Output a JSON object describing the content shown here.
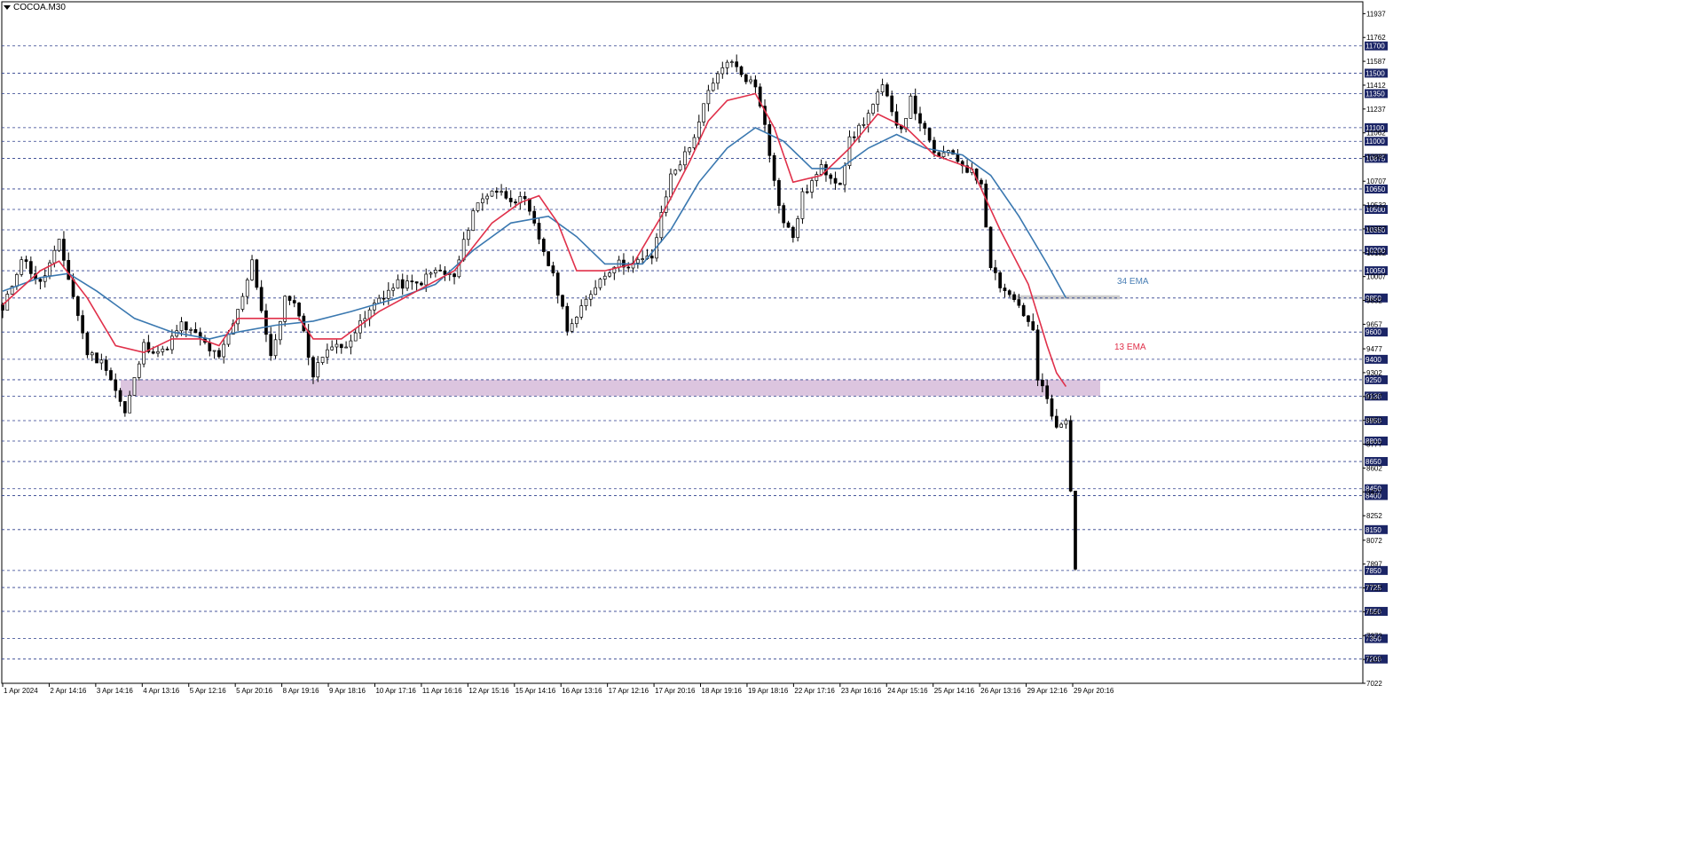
{
  "symbol": "COCOA.M30",
  "chart_data": {
    "type": "candlestick",
    "ylim": [
      7022,
      12024
    ],
    "price_scale_ticks": [
      "11937",
      "11762",
      "11587",
      "11412",
      "11237",
      "11062",
      "10887",
      "10707",
      "10532",
      "10357",
      "10182",
      "10007",
      "9832",
      "9657",
      "9477",
      "9302",
      "9127",
      "8952",
      "8777",
      "8602",
      "8427",
      "8252",
      "8072",
      "7897",
      "7722",
      "7547",
      "7372",
      "7197",
      "7022"
    ],
    "levels": [
      "11700",
      "11500",
      "11350",
      "11100",
      "11000",
      "10875",
      "10650",
      "10500",
      "10350",
      "10200",
      "10050",
      "9850",
      "9600",
      "9400",
      "9250",
      "9130",
      "8950",
      "8800",
      "8650",
      "8450",
      "8400",
      "8150",
      "7850",
      "7725",
      "7550",
      "7350",
      "7200"
    ],
    "x_tick_labels": [
      "1 Apr 2024",
      "2 Apr 14:16",
      "3 Apr 14:16",
      "4 Apr 13:16",
      "5 Apr 12:16",
      "5 Apr 20:16",
      "8 Apr 19:16",
      "9 Apr 18:16",
      "10 Apr 17:16",
      "11 Apr 16:16",
      "12 Apr 15:16",
      "15 Apr 14:16",
      "16 Apr 13:16",
      "17 Apr 12:16",
      "17 Apr 20:16",
      "18 Apr 19:16",
      "19 Apr 18:16",
      "22 Apr 17:16",
      "23 Apr 16:16",
      "24 Apr 15:16",
      "25 Apr 14:16",
      "26 Apr 13:16",
      "29 Apr 12:16",
      "29 Apr 20:16"
    ],
    "annotations": [
      {
        "text": "34 EMA",
        "color": "#4a7fb5"
      },
      {
        "text": "13 EMA",
        "color": "#e0304a"
      }
    ],
    "zones": [
      {
        "from": 9130,
        "to": 9250,
        "color": "#d8bfdc"
      },
      {
        "from": 9840,
        "to": 9870,
        "color": "#c8c8c8"
      }
    ],
    "path": [
      [
        0,
        9750
      ],
      [
        4,
        10150
      ],
      [
        8,
        9950
      ],
      [
        12,
        10250
      ],
      [
        14,
        10000
      ],
      [
        18,
        9450
      ],
      [
        22,
        9350
      ],
      [
        26,
        9000
      ],
      [
        30,
        9500
      ],
      [
        34,
        9450
      ],
      [
        38,
        9650
      ],
      [
        42,
        9550
      ],
      [
        46,
        9400
      ],
      [
        50,
        9750
      ],
      [
        53,
        10130
      ],
      [
        57,
        9400
      ],
      [
        60,
        9850
      ],
      [
        63,
        9750
      ],
      [
        66,
        9280
      ],
      [
        69,
        9500
      ],
      [
        72,
        9480
      ],
      [
        76,
        9650
      ],
      [
        80,
        9850
      ],
      [
        84,
        9950
      ],
      [
        88,
        9950
      ],
      [
        92,
        10050
      ],
      [
        96,
        10000
      ],
      [
        100,
        10500
      ],
      [
        104,
        10650
      ],
      [
        107,
        10600
      ],
      [
        111,
        10550
      ],
      [
        115,
        10200
      ],
      [
        118,
        9900
      ],
      [
        120,
        9640
      ],
      [
        122,
        9700
      ],
      [
        126,
        9950
      ],
      [
        130,
        10100
      ],
      [
        134,
        10100
      ],
      [
        138,
        10150
      ],
      [
        142,
        10750
      ],
      [
        146,
        10950
      ],
      [
        150,
        11350
      ],
      [
        154,
        11600
      ],
      [
        157,
        11500
      ],
      [
        160,
        11400
      ],
      [
        162,
        11150
      ],
      [
        164,
        10700
      ],
      [
        166,
        10400
      ],
      [
        168,
        10300
      ],
      [
        170,
        10600
      ],
      [
        174,
        10800
      ],
      [
        178,
        10700
      ],
      [
        180,
        11000
      ],
      [
        184,
        11200
      ],
      [
        187,
        11400
      ],
      [
        189,
        11200
      ],
      [
        191,
        11100
      ],
      [
        193,
        11300
      ],
      [
        195,
        11150
      ],
      [
        198,
        10900
      ],
      [
        202,
        10900
      ],
      [
        205,
        10800
      ],
      [
        208,
        10700
      ],
      [
        210,
        10100
      ],
      [
        212,
        9950
      ],
      [
        216,
        9800
      ],
      [
        219,
        9600
      ],
      [
        220,
        9250
      ],
      [
        222,
        9100
      ],
      [
        224,
        8880
      ],
      [
        226,
        8950
      ],
      [
        227,
        8420
      ],
      [
        228,
        7860
      ]
    ],
    "ema13": [
      [
        0,
        9800
      ],
      [
        8,
        10050
      ],
      [
        12,
        10120
      ],
      [
        18,
        9850
      ],
      [
        24,
        9500
      ],
      [
        30,
        9450
      ],
      [
        36,
        9550
      ],
      [
        42,
        9550
      ],
      [
        46,
        9500
      ],
      [
        50,
        9700
      ],
      [
        57,
        9700
      ],
      [
        63,
        9700
      ],
      [
        66,
        9550
      ],
      [
        72,
        9550
      ],
      [
        80,
        9750
      ],
      [
        88,
        9900
      ],
      [
        96,
        10050
      ],
      [
        104,
        10400
      ],
      [
        110,
        10550
      ],
      [
        114,
        10600
      ],
      [
        118,
        10400
      ],
      [
        122,
        10050
      ],
      [
        128,
        10050
      ],
      [
        134,
        10100
      ],
      [
        140,
        10450
      ],
      [
        146,
        10850
      ],
      [
        150,
        11150
      ],
      [
        154,
        11300
      ],
      [
        160,
        11350
      ],
      [
        164,
        11100
      ],
      [
        168,
        10700
      ],
      [
        174,
        10750
      ],
      [
        180,
        10950
      ],
      [
        186,
        11200
      ],
      [
        192,
        11100
      ],
      [
        198,
        10900
      ],
      [
        206,
        10800
      ],
      [
        212,
        10350
      ],
      [
        218,
        9950
      ],
      [
        222,
        9500
      ],
      [
        224,
        9300
      ],
      [
        226,
        9200
      ]
    ],
    "ema34": [
      [
        0,
        9900
      ],
      [
        8,
        10000
      ],
      [
        14,
        10030
      ],
      [
        20,
        9900
      ],
      [
        28,
        9700
      ],
      [
        36,
        9600
      ],
      [
        44,
        9550
      ],
      [
        50,
        9600
      ],
      [
        58,
        9650
      ],
      [
        66,
        9680
      ],
      [
        74,
        9750
      ],
      [
        84,
        9850
      ],
      [
        92,
        9950
      ],
      [
        100,
        10200
      ],
      [
        108,
        10400
      ],
      [
        116,
        10450
      ],
      [
        122,
        10300
      ],
      [
        128,
        10100
      ],
      [
        136,
        10100
      ],
      [
        142,
        10350
      ],
      [
        148,
        10700
      ],
      [
        154,
        10950
      ],
      [
        160,
        11100
      ],
      [
        166,
        11000
      ],
      [
        172,
        10800
      ],
      [
        178,
        10800
      ],
      [
        184,
        10950
      ],
      [
        190,
        11050
      ],
      [
        196,
        10950
      ],
      [
        204,
        10900
      ],
      [
        210,
        10750
      ],
      [
        216,
        10450
      ],
      [
        222,
        10100
      ],
      [
        226,
        9850
      ]
    ]
  }
}
